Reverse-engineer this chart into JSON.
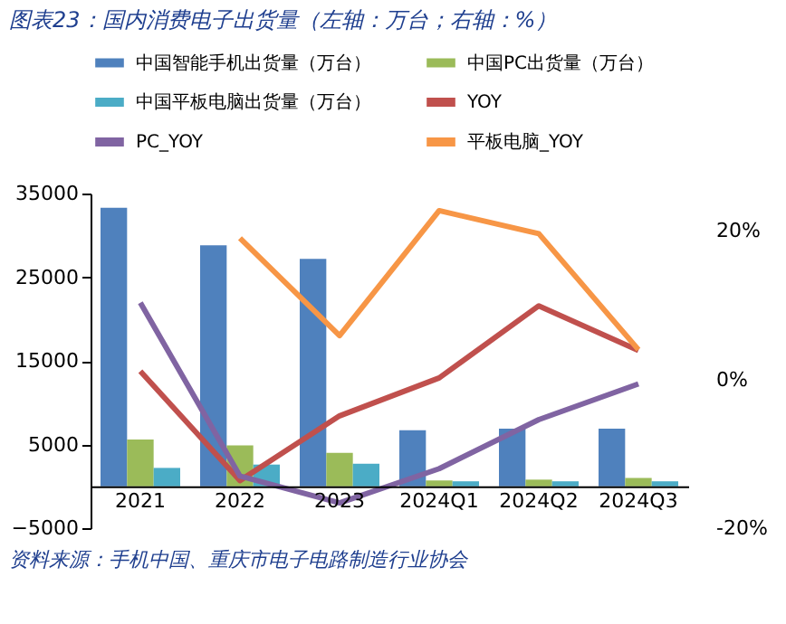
{
  "chart_data": {
    "type": "bar",
    "title": "图表23：国内消费电子出货量（左轴：万台；右轴：%）",
    "categories": [
      "2021",
      "2022",
      "2023",
      "2024Q1",
      "2024Q2",
      "2024Q3"
    ],
    "series": [
      {
        "name": "中国智能手机出货量（万台）",
        "color": "#4f81bd",
        "values": [
          33300,
          28800,
          27200,
          6700,
          6900,
          6900
        ]
      },
      {
        "name": "中国PC出货量（万台）",
        "color": "#9bbb59",
        "values": [
          5600,
          4900,
          4000,
          700,
          800,
          1000
        ]
      },
      {
        "name": "中国平板电脑出货量（万台）",
        "color": "#4bacc6",
        "values": [
          2200,
          2600,
          2700,
          600,
          600,
          600
        ]
      },
      {
        "name": "YOY",
        "type": "line",
        "axis": "y2",
        "color": "#c0504d",
        "values": [
          1.1,
          -13.6,
          -4.9,
          0.2,
          9.9,
          3.9
        ]
      },
      {
        "name": "PC_YOY",
        "type": "line",
        "axis": "y2",
        "color": "#8064a2",
        "values": [
          10.3,
          -13.0,
          -16.6,
          -12.0,
          -5.4,
          -0.6
        ]
      },
      {
        "name": "平板电脑_YOY",
        "type": "line",
        "axis": "y2",
        "color": "#f79646",
        "values": [
          null,
          19.0,
          5.9,
          22.7,
          19.6,
          4.0
        ]
      }
    ],
    "ylim": [
      -5000,
      35000
    ],
    "yticks": [
      -5000,
      5000,
      15000,
      25000,
      35000
    ],
    "y2lim": [
      -20,
      25
    ],
    "y2ticks": [
      {
        "value": -20,
        "label": "-20%"
      },
      {
        "value": 0,
        "label": "0%"
      },
      {
        "value": 20,
        "label": "20%"
      }
    ],
    "legend": "top",
    "grid": false,
    "annotations": [
      "资料来源：手机中国、重庆市电子电路制造行业协会"
    ]
  }
}
